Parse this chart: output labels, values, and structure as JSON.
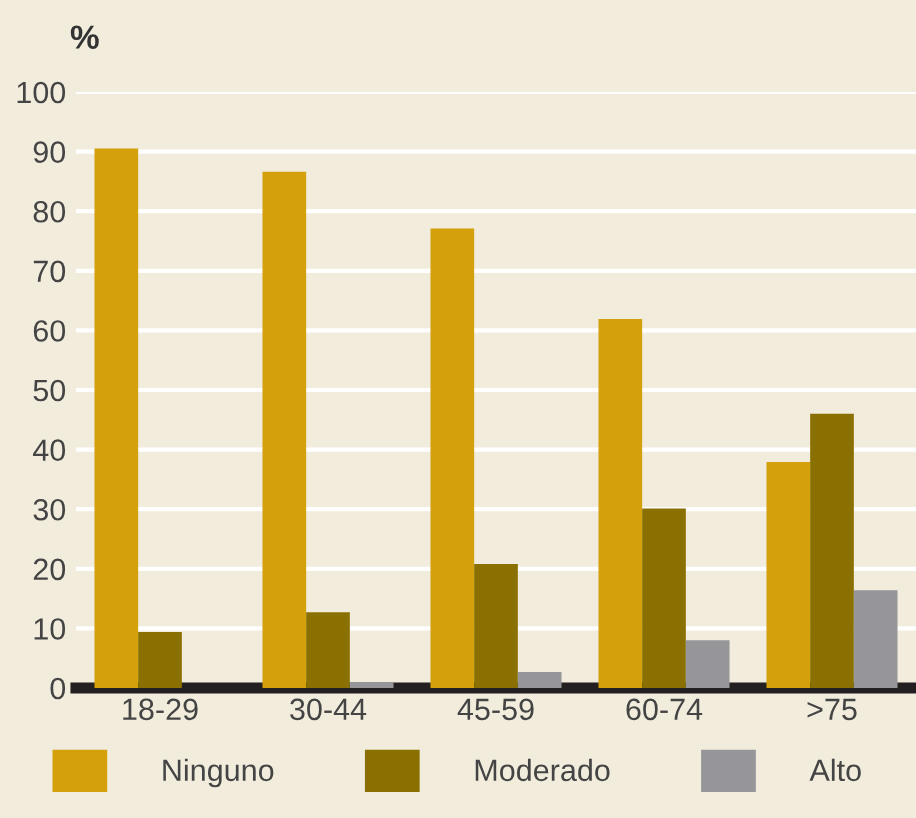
{
  "chart_data": {
    "type": "bar",
    "ylabel": "%",
    "categories": [
      "18-29",
      "30-44",
      "45-59",
      "60-74",
      ">75"
    ],
    "series": [
      {
        "name": "Ninguno",
        "color": "#d4a00c",
        "values": [
          90.5,
          86.6,
          77.1,
          61.9,
          37.9
        ]
      },
      {
        "name": "Moderado",
        "color": "#8a7000",
        "values": [
          9.4,
          12.7,
          20.8,
          30.1,
          46.0
        ]
      },
      {
        "name": "Alto",
        "color": "#96969a",
        "values": [
          0,
          1.0,
          2.7,
          8.0,
          16.4
        ]
      }
    ],
    "ylim": [
      0,
      100
    ],
    "yticks": [
      0,
      10,
      20,
      30,
      40,
      50,
      60,
      70,
      80,
      90,
      100
    ],
    "grid": "y",
    "legend": "bottom"
  }
}
